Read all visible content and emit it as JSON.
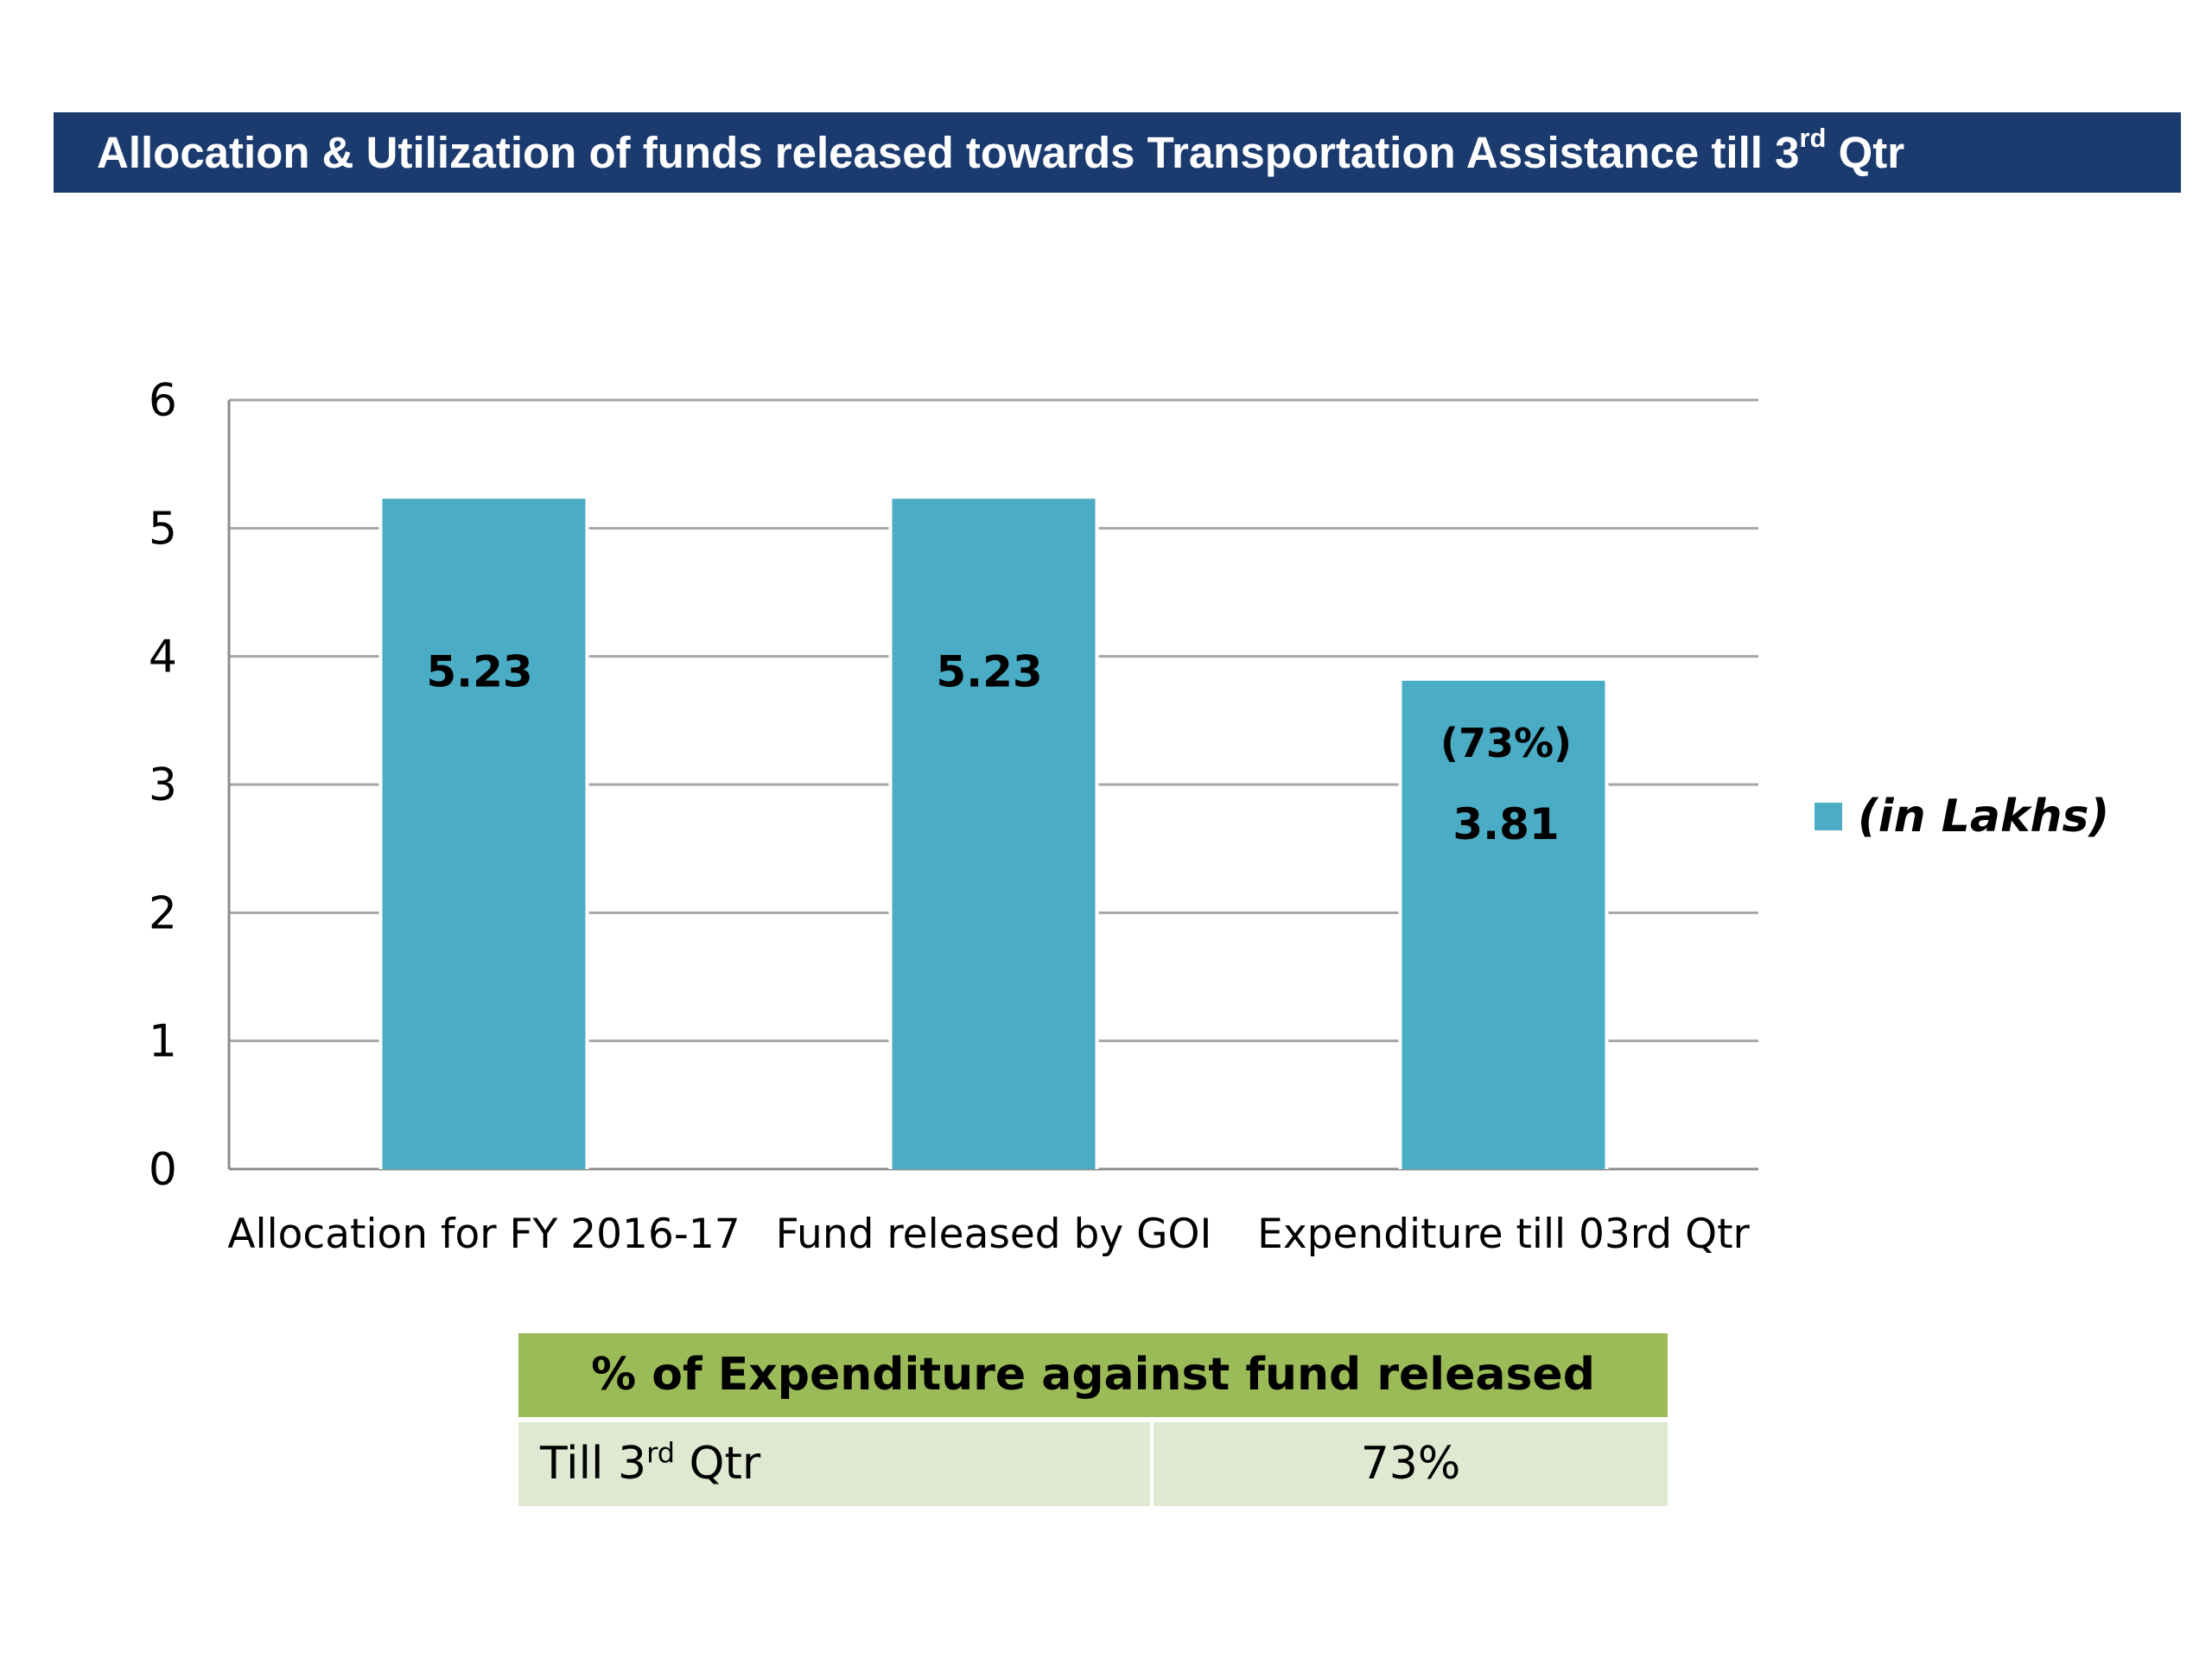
{
  "header": {
    "title_pre": "Allocation & Utilization of funds released towards Transportation Assistance  till 3",
    "title_sup": "rd",
    "title_post": " Qtr"
  },
  "chart_data": {
    "type": "bar",
    "categories": [
      "Allocation for FY 2016-17",
      "Fund released by GOI",
      "Expenditure till 03rd  Qtr"
    ],
    "series": [
      {
        "name": "(in Lakhs)",
        "values": [
          5.23,
          5.23,
          3.81
        ],
        "color": "#4bacc6"
      }
    ],
    "data_labels": [
      "5.23",
      "5.23",
      "3.81"
    ],
    "percent_labels": [
      "",
      "",
      "(73%)"
    ],
    "ylim": [
      0,
      6
    ],
    "yticks": [
      0,
      1,
      2,
      3,
      4,
      5,
      6
    ],
    "grid": true,
    "legend_position": "right",
    "xlabel": "",
    "ylabel": ""
  },
  "table": {
    "header": "% of Expenditure against fund released",
    "rows": [
      {
        "label_pre": "Till 3",
        "label_sup": "rd",
        "label_post": " Qtr",
        "value": "73%"
      }
    ]
  },
  "colors": {
    "title_bg": "#1b3b6f",
    "bar": "#4bacc6",
    "table_header_bg": "#9bbb59",
    "table_row_bg": "#dfe8d1"
  }
}
